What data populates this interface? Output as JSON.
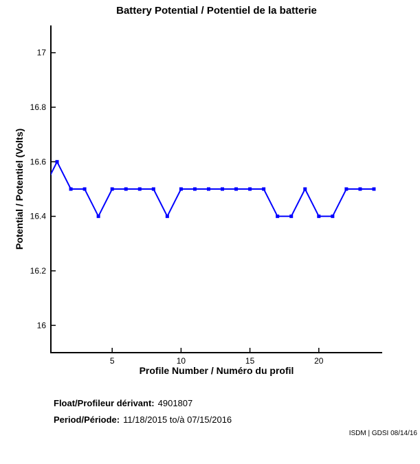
{
  "chart_data": {
    "type": "line",
    "title": "Battery Potential / Potentiel de la batterie",
    "xlabel": "Profile Number / Numéro du profil",
    "ylabel": "Potential / Potentiel (Volts)",
    "x": [
      0,
      1,
      2,
      3,
      4,
      5,
      6,
      7,
      8,
      9,
      10,
      11,
      12,
      13,
      14,
      15,
      16,
      17,
      18,
      19,
      20,
      21,
      22,
      23,
      24
    ],
    "values": [
      16.5,
      16.6,
      16.5,
      16.5,
      16.4,
      16.5,
      16.5,
      16.5,
      16.5,
      16.4,
      16.5,
      16.5,
      16.5,
      16.5,
      16.5,
      16.5,
      16.5,
      16.4,
      16.4,
      16.5,
      16.4,
      16.4,
      16.5,
      16.5,
      16.5
    ],
    "series_name": "Battery potential",
    "line_color": "#0000ff",
    "marker": "square",
    "marker_size": 5,
    "xlim": [
      0.55,
      24.6
    ],
    "ylim": [
      15.9,
      17.1
    ],
    "xticks": [
      5,
      10,
      15,
      20
    ],
    "xtick_labels": [
      "5",
      "10",
      "15",
      "20"
    ],
    "yticks": [
      16,
      16.2,
      16.4,
      16.6,
      16.8,
      17
    ],
    "ytick_labels": [
      "16",
      "16.2",
      "16.4",
      "16.6",
      "16.8",
      "17"
    ],
    "grid": false,
    "legend": "none",
    "note": "first point (profile 0) is clipped by the left axis edge"
  },
  "footer": {
    "float_label": "Float/Profileur dérivant:",
    "float_value": "4901807",
    "period_label": "Period/Période:",
    "period_value": "11/18/2015  to/à  07/15/2016"
  },
  "watermark": "ISDM | GDSI 08/14/16",
  "colors": {
    "line": "#0000ff",
    "axis": "#000000",
    "background": "#ffffff"
  }
}
